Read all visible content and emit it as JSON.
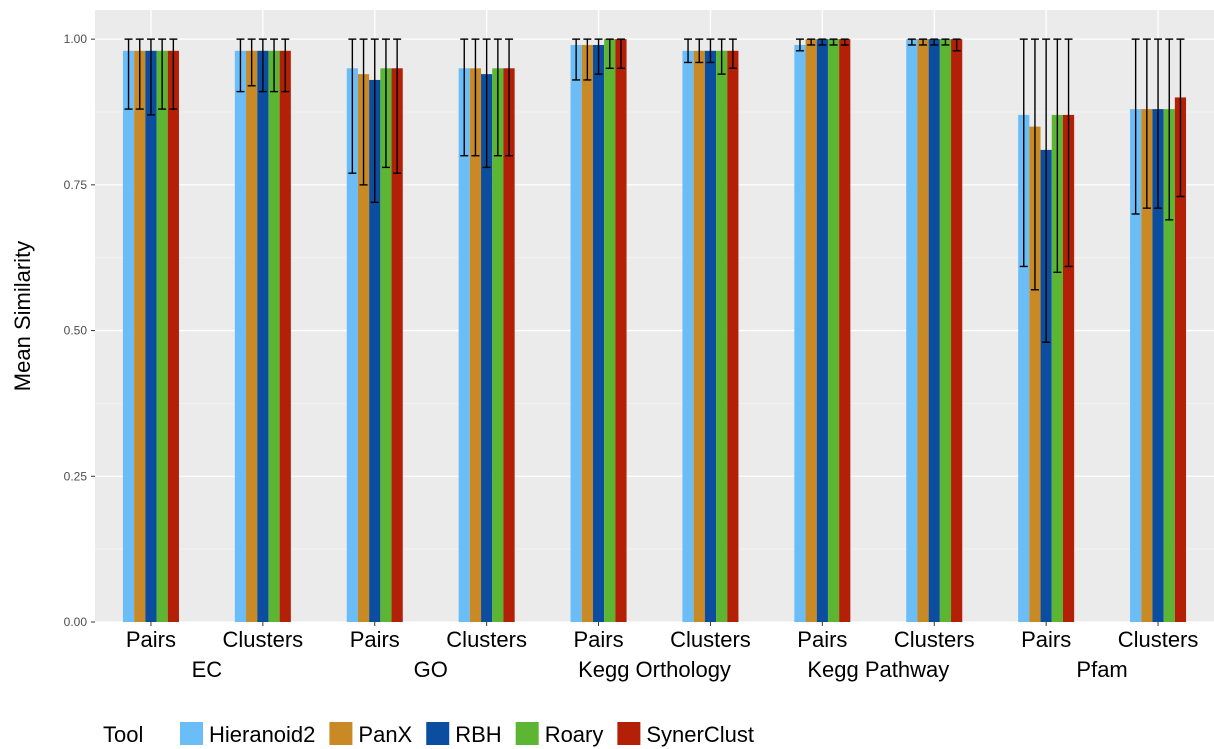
{
  "chart_data": {
    "type": "bar",
    "ylabel": "Mean Similarity",
    "ylim": [
      0,
      1.05
    ],
    "yticks": [
      0.0,
      0.25,
      0.5,
      0.75,
      1.0
    ],
    "ytick_labels": [
      "0.00",
      "0.25",
      "0.50",
      "0.75",
      "1.00"
    ],
    "grid": true,
    "legend_position": "bottom",
    "legend_title": "Tool",
    "groups": [
      {
        "name": "EC",
        "categories": [
          "Pairs",
          "Clusters"
        ]
      },
      {
        "name": "GO",
        "categories": [
          "Pairs",
          "Clusters"
        ]
      },
      {
        "name": "Kegg Orthology",
        "categories": [
          "Pairs",
          "Clusters"
        ]
      },
      {
        "name": "Kegg Pathway",
        "categories": [
          "Pairs",
          "Clusters"
        ]
      },
      {
        "name": "Pfam",
        "categories": [
          "Pairs",
          "Clusters"
        ]
      }
    ],
    "series": [
      {
        "name": "Hieranoid2",
        "color": "#6bbdf7",
        "values": [
          0.98,
          0.98,
          0.95,
          0.95,
          0.99,
          0.98,
          0.99,
          1.0,
          0.87,
          0.88
        ],
        "err_low": [
          0.88,
          0.91,
          0.77,
          0.8,
          0.93,
          0.96,
          0.98,
          0.99,
          0.61,
          0.7
        ],
        "err_high": [
          1.0,
          1.0,
          1.0,
          1.0,
          1.0,
          1.0,
          1.0,
          1.0,
          1.0,
          1.0
        ]
      },
      {
        "name": "PanX",
        "color": "#c98a25",
        "values": [
          0.98,
          0.98,
          0.94,
          0.95,
          0.99,
          0.98,
          1.0,
          1.0,
          0.85,
          0.88
        ],
        "err_low": [
          0.88,
          0.92,
          0.75,
          0.8,
          0.93,
          0.96,
          0.99,
          0.99,
          0.57,
          0.71
        ],
        "err_high": [
          1.0,
          1.0,
          1.0,
          1.0,
          1.0,
          1.0,
          1.0,
          1.0,
          1.0,
          1.0
        ]
      },
      {
        "name": "RBH",
        "color": "#0b4e9f",
        "values": [
          0.98,
          0.98,
          0.93,
          0.94,
          0.99,
          0.98,
          1.0,
          1.0,
          0.81,
          0.88
        ],
        "err_low": [
          0.87,
          0.91,
          0.72,
          0.78,
          0.94,
          0.96,
          0.99,
          0.99,
          0.48,
          0.71
        ],
        "err_high": [
          1.0,
          1.0,
          1.0,
          1.0,
          1.0,
          1.0,
          1.0,
          1.0,
          1.0,
          1.0
        ]
      },
      {
        "name": "Roary",
        "color": "#5db534",
        "values": [
          0.98,
          0.98,
          0.95,
          0.95,
          1.0,
          0.98,
          1.0,
          1.0,
          0.87,
          0.88
        ],
        "err_low": [
          0.88,
          0.91,
          0.78,
          0.8,
          0.95,
          0.94,
          0.99,
          0.99,
          0.6,
          0.69
        ],
        "err_high": [
          1.0,
          1.0,
          1.0,
          1.0,
          1.0,
          1.0,
          1.0,
          1.0,
          1.0,
          1.0
        ]
      },
      {
        "name": "SynerClust",
        "color": "#b31f07",
        "values": [
          0.98,
          0.98,
          0.95,
          0.95,
          1.0,
          0.98,
          1.0,
          1.0,
          0.87,
          0.9
        ],
        "err_low": [
          0.88,
          0.91,
          0.77,
          0.8,
          0.95,
          0.95,
          0.99,
          0.98,
          0.61,
          0.73
        ],
        "err_high": [
          1.0,
          1.0,
          1.0,
          1.0,
          1.0,
          1.0,
          1.0,
          1.0,
          1.0,
          1.0
        ]
      }
    ]
  }
}
